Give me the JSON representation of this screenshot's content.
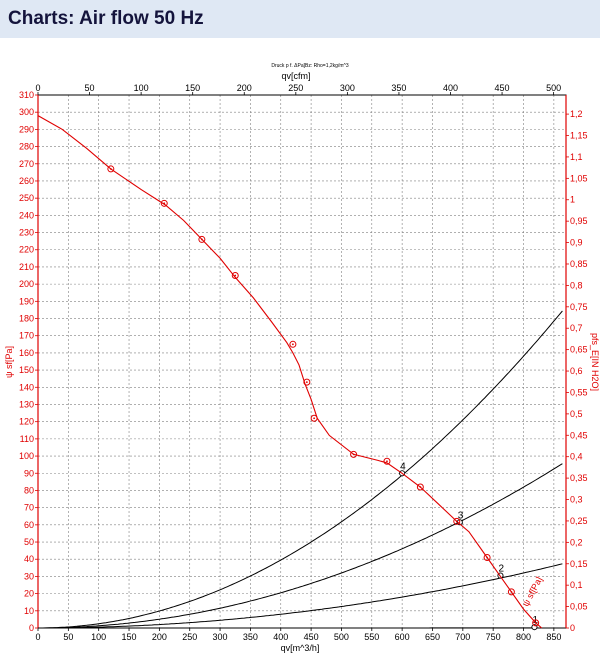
{
  "page": {
    "title": "Charts: Air flow 50 Hz"
  },
  "chart_data": {
    "type": "line",
    "title": "Druck p f. ΔPa]Bz: Rho=1,2kg/m^3",
    "xlabel": "qv[m^3/h]",
    "x2label": "qv[cfm]",
    "ylabel": "ψ sf[Pa]",
    "y2label": "pfs_E[IN H2O]",
    "xlim": [
      0,
      870
    ],
    "ylim": [
      0,
      310
    ],
    "x2lim": [
      0,
      512
    ],
    "y2lim": [
      0,
      1.2446
    ],
    "x_ticks": [
      0,
      50,
      100,
      150,
      200,
      250,
      300,
      350,
      400,
      450,
      500,
      550,
      600,
      650,
      700,
      750,
      800,
      850
    ],
    "x_tick_labels": [
      "0",
      "50",
      "100",
      "150",
      "200",
      "250",
      "300",
      "350",
      "400",
      "450",
      "500",
      "550",
      "600",
      "650",
      "700",
      "750",
      "800",
      "850"
    ],
    "y_ticks": [
      0,
      10,
      20,
      30,
      40,
      50,
      60,
      70,
      80,
      90,
      100,
      110,
      120,
      130,
      140,
      150,
      160,
      170,
      180,
      190,
      200,
      210,
      220,
      230,
      240,
      250,
      260,
      270,
      280,
      290,
      300,
      310
    ],
    "y_tick_labels": [
      "0",
      "10",
      "20",
      "30",
      "40",
      "50",
      "60",
      "70",
      "80",
      "90",
      "100",
      "110",
      "120",
      "130",
      "140",
      "150",
      "160",
      "170",
      "180",
      "190",
      "200",
      "210",
      "220",
      "230",
      "240",
      "250",
      "260",
      "270",
      "280",
      "290",
      "300",
      "310"
    ],
    "x2_ticks": [
      0,
      50,
      100,
      150,
      200,
      250,
      300,
      350,
      400,
      450,
      500
    ],
    "x2_tick_labels": [
      "0",
      "50",
      "100",
      "150",
      "200",
      "250",
      "300",
      "350",
      "400",
      "450",
      "500"
    ],
    "y2_ticks": [
      0,
      0.05,
      0.1,
      0.15,
      0.2,
      0.25,
      0.3,
      0.35,
      0.4,
      0.45,
      0.5,
      0.55,
      0.6,
      0.65,
      0.7,
      0.75,
      0.8,
      0.85,
      0.9,
      0.95,
      1.0,
      1.05,
      1.1,
      1.15,
      1.2
    ],
    "y2_tick_labels": [
      "0",
      "0,05",
      "0,1",
      "0,15",
      "0,2",
      "0,25",
      "0,3",
      "0,35",
      "0,4",
      "0,45",
      "0,5",
      "0,55",
      "0,6",
      "0,65",
      "0,7",
      "0,75",
      "0,8",
      "0,85",
      "0,9",
      "0,95",
      "1",
      "1,05",
      "1,1",
      "1,15",
      "1,2"
    ],
    "grid": true,
    "colors": {
      "fan": "#e00000",
      "system": "#000000",
      "axis_red": "#e00000",
      "grid": "#808080"
    },
    "fan_curve": {
      "name": "ψ sf[Pa]",
      "x": [
        0,
        40,
        80,
        120,
        170,
        210,
        240,
        270,
        300,
        325,
        355,
        385,
        410,
        420,
        430,
        440,
        450,
        460,
        480,
        520,
        560,
        575,
        600,
        630,
        660,
        690,
        710,
        740,
        760,
        780,
        800,
        820,
        830
      ],
      "y": [
        298,
        290,
        279,
        267,
        255,
        246,
        237,
        226,
        215,
        204,
        192,
        178,
        166,
        160,
        153,
        142,
        133,
        122,
        112,
        101,
        97.5,
        96,
        90,
        82,
        72,
        62,
        56,
        41,
        31,
        21,
        11,
        3,
        0
      ]
    },
    "fan_markers": {
      "x": [
        120,
        208,
        270,
        325,
        420,
        443,
        455,
        520,
        575,
        630,
        690,
        740,
        780,
        820
      ],
      "y": [
        267,
        247,
        226,
        205,
        165,
        143,
        122,
        101,
        97,
        82,
        62,
        41,
        21,
        3
      ]
    },
    "system_curves": [
      {
        "label": "1",
        "k": 7e-08,
        "x_end": 820,
        "op_point": [
          818,
          0.5
        ]
      },
      {
        "label": "2",
        "k": 5e-05,
        "x_end": 866,
        "op_point": [
          762,
          30.5
        ]
      },
      {
        "label": "3",
        "k": 0.000128,
        "x_end": 866,
        "op_point": [
          695,
          61.5
        ]
      },
      {
        "label": "4",
        "k": 0.000247,
        "x_end": 866,
        "op_point": [
          600,
          90
        ]
      }
    ]
  }
}
